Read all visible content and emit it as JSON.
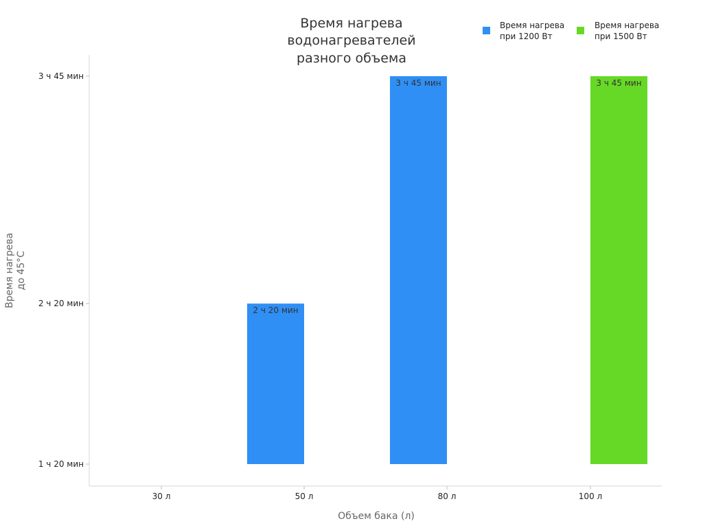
{
  "chart_data": {
    "type": "bar",
    "title": [
      "Время нагрева",
      "водонагревателей",
      "разного объема"
    ],
    "xlabel": "Объем бака (л)",
    "ylabel": [
      "Время нагрева",
      "до 45°C"
    ],
    "categories": [
      "30 л",
      "50 л",
      "80 л",
      "100 л"
    ],
    "y_ticks": [
      {
        "label": "1 ч 20 мин",
        "minutes": 80
      },
      {
        "label": "2 ч 20 мин",
        "minutes": 140
      },
      {
        "label": "3 ч 45 мин",
        "minutes": 225
      }
    ],
    "ylim_minutes": [
      80,
      225
    ],
    "legend_position": "top-right",
    "grid": false,
    "series": [
      {
        "name": [
          "Время нагрева",
          "при 1200 Вт"
        ],
        "color": "#2f8ff5",
        "values_minutes": [
          null,
          140,
          225,
          null
        ],
        "labels": [
          "",
          "2 ч 20 мин",
          "3 ч 45 мин",
          ""
        ]
      },
      {
        "name": [
          "Время нагрева",
          "при 1500 Вт"
        ],
        "color": "#66d926",
        "values_minutes": [
          null,
          null,
          null,
          225
        ],
        "labels": [
          "",
          "",
          "",
          "3 ч 45 мин"
        ]
      }
    ]
  }
}
